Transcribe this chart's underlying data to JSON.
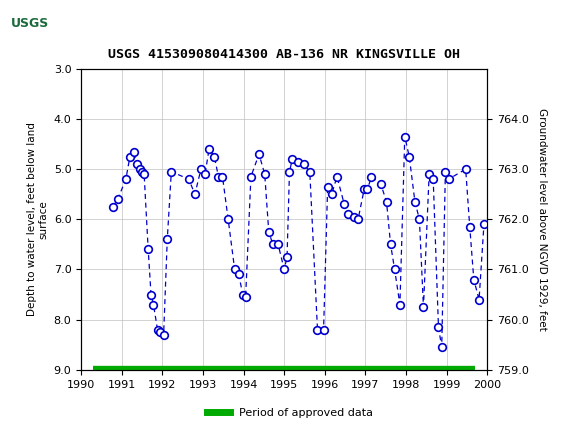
{
  "title": "USGS 415309080414300 AB-136 NR KINGSVILLE OH",
  "ylabel_left": "Depth to water level, feet below land\nsurface",
  "ylabel_right": "Groundwater level above NGVD 1929, feet",
  "xlim": [
    1990,
    2000
  ],
  "ylim_left": [
    3.0,
    9.0
  ],
  "ylim_right": [
    759.0,
    765.0
  ],
  "y_left_ticks": [
    3.0,
    4.0,
    5.0,
    6.0,
    7.0,
    8.0,
    9.0
  ],
  "y_right_ticks": [
    759.0,
    760.0,
    761.0,
    762.0,
    763.0,
    764.0
  ],
  "x_ticks": [
    1990,
    1991,
    1992,
    1993,
    1994,
    1995,
    1996,
    1997,
    1998,
    1999,
    2000
  ],
  "header_color": "#1a6b3c",
  "line_color": "#0000cc",
  "marker_color": "#0000cc",
  "grid_color": "#c0c0c0",
  "legend_label": "Period of approved data",
  "legend_color": "#00aa00",
  "data_x": [
    1990.78,
    1990.9,
    1991.1,
    1991.2,
    1991.3,
    1991.38,
    1991.45,
    1991.5,
    1991.55,
    1991.65,
    1991.72,
    1991.78,
    1991.88,
    1991.95,
    1992.03,
    1992.12,
    1992.22,
    1992.65,
    1992.8,
    1992.95,
    1993.05,
    1993.15,
    1993.28,
    1993.38,
    1993.48,
    1993.62,
    1993.78,
    1993.88,
    1993.98,
    1994.05,
    1994.18,
    1994.38,
    1994.52,
    1994.62,
    1994.72,
    1994.85,
    1995.0,
    1995.07,
    1995.13,
    1995.2,
    1995.33,
    1995.48,
    1995.63,
    1995.82,
    1995.97,
    1996.07,
    1996.17,
    1996.3,
    1996.48,
    1996.58,
    1996.72,
    1996.82,
    1996.97,
    1997.05,
    1997.15,
    1997.38,
    1997.52,
    1997.62,
    1997.72,
    1997.85,
    1997.97,
    1998.08,
    1998.22,
    1998.33,
    1998.43,
    1998.57,
    1998.67,
    1998.8,
    1998.88,
    1998.97,
    1999.05,
    1999.47,
    1999.57,
    1999.67,
    1999.8,
    1999.92
  ],
  "data_y": [
    5.75,
    5.6,
    5.2,
    4.75,
    4.65,
    4.9,
    5.0,
    5.05,
    5.1,
    6.6,
    7.5,
    7.7,
    8.2,
    8.25,
    8.3,
    6.4,
    5.05,
    5.2,
    5.5,
    5.0,
    5.1,
    4.6,
    4.75,
    5.15,
    5.15,
    6.0,
    7.0,
    7.1,
    7.5,
    7.55,
    5.15,
    4.7,
    5.1,
    6.25,
    6.5,
    6.5,
    7.0,
    6.75,
    5.05,
    4.8,
    4.85,
    4.9,
    5.05,
    8.2,
    8.2,
    5.35,
    5.5,
    5.15,
    5.7,
    5.9,
    5.95,
    6.0,
    5.4,
    5.4,
    5.15,
    5.3,
    5.65,
    6.5,
    7.0,
    7.7,
    4.35,
    4.75,
    5.65,
    6.0,
    7.75,
    5.1,
    5.2,
    8.15,
    8.55,
    5.05,
    5.2,
    5.0,
    6.15,
    7.2,
    7.6,
    6.1
  ]
}
